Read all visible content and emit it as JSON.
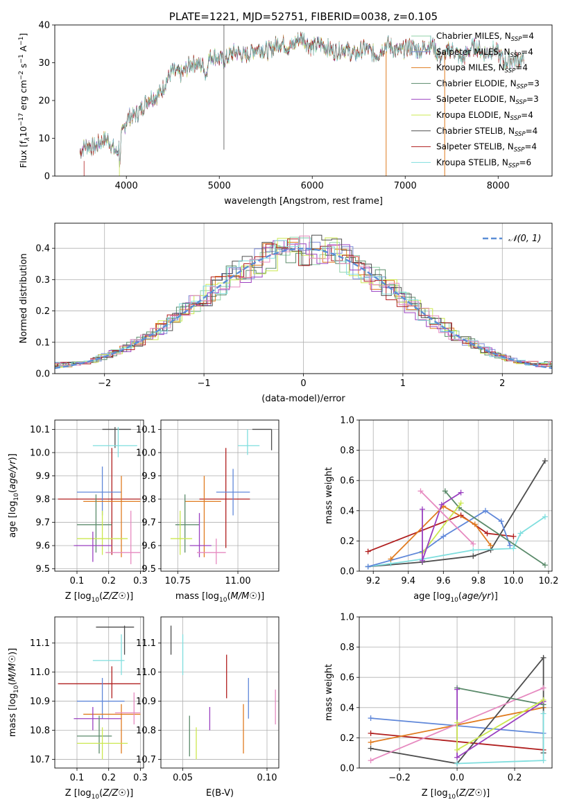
{
  "colors": {
    "chabrier_miles": "#8fd1a7",
    "salpeter_miles": "#7b8ad6",
    "kroupa_miles": "#e07b1f",
    "chabrier_elodie": "#5a8a6a",
    "salpeter_elodie": "#9a3fc0",
    "kroupa_elodie": "#cbe84f",
    "chabrier_stelib": "#4d4d4d",
    "salpeter_stelib": "#b01e1e",
    "kroupa_stelib": "#7fdede",
    "pink": "#e68ac0",
    "blue": "#5f87d9",
    "gaussian": "#5b8ed6",
    "grid": "#b0b0b0"
  },
  "chart_data": [
    {
      "id": "spectrum",
      "type": "line",
      "title": "PLATE=1221, MJD=52751, FIBERID=0038, z=0.105",
      "xlabel": "wavelength [Angstrom, rest frame]",
      "ylabel_parts": [
        "Flux [f",
        "λ",
        "10",
        "−17",
        " erg cm",
        "−2",
        " s",
        "−1",
        " A",
        "−1",
        "]"
      ],
      "xlim": [
        3230,
        8580
      ],
      "ylim": [
        0,
        40
      ],
      "xticks": [
        "4000",
        "5000",
        "6000",
        "7000",
        "8000"
      ],
      "yticks": [
        "0",
        "10",
        "20",
        "30",
        "40"
      ],
      "legend": [
        {
          "label": "Chabrier MILES, N",
          "sub": "SSP",
          "tail": "=4"
        },
        {
          "label": "Salpeter MILES, N",
          "sub": "SSP",
          "tail": "=4"
        },
        {
          "label": "Kroupa MILES, N",
          "sub": "SSP",
          "tail": "=4"
        },
        {
          "label": "Chabrier ELODIE, N",
          "sub": "SSP",
          "tail": "=3"
        },
        {
          "label": "Salpeter ELODIE, N",
          "sub": "SSP",
          "tail": "=3"
        },
        {
          "label": "Kroupa ELODIE, N",
          "sub": "SSP",
          "tail": "=4"
        },
        {
          "label": "Chabrier STELIB, N",
          "sub": "SSP",
          "tail": "=4"
        },
        {
          "label": "Salpeter STELIB, N",
          "sub": "SSP",
          "tail": "=4"
        },
        {
          "label": "Kroupa STELIB, N",
          "sub": "SSP",
          "tail": "=6"
        }
      ],
      "continuum": [
        [
          3500,
          6
        ],
        [
          3600,
          8
        ],
        [
          3700,
          9
        ],
        [
          3800,
          9
        ],
        [
          3900,
          7
        ],
        [
          4000,
          14
        ],
        [
          4100,
          17
        ],
        [
          4200,
          19
        ],
        [
          4300,
          21
        ],
        [
          4400,
          24
        ],
        [
          4500,
          27
        ],
        [
          4600,
          28
        ],
        [
          4700,
          29
        ],
        [
          4800,
          30
        ],
        [
          4900,
          31
        ],
        [
          5000,
          31
        ],
        [
          5100,
          32
        ],
        [
          5200,
          32
        ],
        [
          5300,
          33
        ],
        [
          5400,
          33
        ],
        [
          5500,
          34
        ],
        [
          5600,
          34
        ],
        [
          5700,
          35
        ],
        [
          5800,
          35
        ],
        [
          5900,
          36
        ],
        [
          6000,
          35
        ],
        [
          6100,
          34
        ],
        [
          6200,
          34
        ],
        [
          6300,
          33
        ],
        [
          6400,
          33
        ],
        [
          6500,
          33
        ],
        [
          6600,
          33
        ],
        [
          6700,
          33
        ],
        [
          6800,
          34
        ],
        [
          6900,
          34
        ],
        [
          7000,
          33
        ],
        [
          7100,
          34
        ],
        [
          7200,
          34
        ],
        [
          7300,
          34
        ],
        [
          7400,
          32
        ],
        [
          7500,
          33
        ],
        [
          7600,
          32
        ],
        [
          7700,
          33
        ],
        [
          7800,
          34
        ],
        [
          7900,
          33
        ],
        [
          8000,
          32
        ],
        [
          8100,
          31
        ],
        [
          8200,
          30
        ],
        [
          8280,
          31
        ]
      ]
    },
    {
      "id": "residuals",
      "type": "line",
      "xlabel": "(data-model)/error",
      "ylabel": "Normed distribution",
      "xlim": [
        -2.5,
        2.5
      ],
      "ylim": [
        0,
        0.48
      ],
      "xticks": [
        "−2",
        "−1",
        "0",
        "1",
        "2"
      ],
      "yticks": [
        "0.0",
        "0.1",
        "0.2",
        "0.3",
        "0.4"
      ],
      "legend": "𝒩(0, 1)"
    },
    {
      "id": "age_vs_z",
      "type": "scatter",
      "xlabel": "Z [log10(Z/Z☉)]",
      "ylabel": "age  [log10(age/yr)]",
      "xlim": [
        0.03,
        0.31
      ],
      "ylim": [
        9.49,
        10.14
      ],
      "xticks": [
        "0.1",
        "0.2",
        "0.3"
      ],
      "yticks": [
        "9.5",
        "9.6",
        "9.7",
        "9.8",
        "9.9",
        "10.0",
        "10.1"
      ],
      "points": [
        {
          "series": "chabrier_stelib",
          "x": 0.22,
          "y": 10.1,
          "xerr": [
            0.18,
            0.27
          ],
          "yerr": [
            10.02,
            10.11
          ]
        },
        {
          "series": "kroupa_stelib",
          "x": 0.23,
          "y": 10.03,
          "xerr": [
            0.15,
            0.29
          ],
          "yerr": [
            9.98,
            10.11
          ]
        },
        {
          "series": "salpeter_stelib",
          "x": 0.21,
          "y": 9.8,
          "xerr": [
            0.04,
            0.3
          ],
          "yerr": [
            9.56,
            10.02
          ]
        },
        {
          "series": "blue",
          "x": 0.18,
          "y": 9.83,
          "xerr": [
            0.1,
            0.24
          ],
          "yerr": [
            9.73,
            9.94
          ]
        },
        {
          "series": "kroupa_miles",
          "x": 0.24,
          "y": 9.79,
          "xerr": [
            0.12,
            0.3
          ],
          "yerr": [
            9.55,
            9.9
          ]
        },
        {
          "series": "chabrier_elodie",
          "x": 0.16,
          "y": 9.69,
          "xerr": [
            0.1,
            0.21
          ],
          "yerr": [
            9.57,
            9.82
          ]
        },
        {
          "series": "kroupa_elodie",
          "x": 0.18,
          "y": 9.63,
          "xerr": [
            0.1,
            0.26
          ],
          "yerr": [
            9.56,
            9.75
          ]
        },
        {
          "series": "salpeter_elodie",
          "x": 0.15,
          "y": 9.6,
          "xerr": [
            0.09,
            0.21
          ],
          "yerr": [
            9.53,
            9.66
          ]
        },
        {
          "series": "pink",
          "x": 0.27,
          "y": 9.57,
          "xerr": [
            0.19,
            0.3
          ],
          "yerr": [
            9.52,
            9.75
          ]
        }
      ]
    },
    {
      "id": "age_vs_mass",
      "type": "scatter",
      "xlabel": "mass [log10(M/M☉)]",
      "xlim": [
        10.68,
        11.17
      ],
      "ylim": [
        9.49,
        10.14
      ],
      "xticks": [
        "10.75",
        "11.00"
      ],
      "yticks": [
        "9.5",
        "9.6",
        "9.7",
        "9.8",
        "9.9",
        "10.0",
        "10.1"
      ],
      "points": [
        {
          "series": "chabrier_stelib",
          "x": 11.14,
          "y": 10.1,
          "xerr": [
            11.06,
            11.14
          ],
          "yerr": [
            10.01,
            10.1
          ]
        },
        {
          "series": "kroupa_stelib",
          "x": 11.04,
          "y": 10.03,
          "xerr": [
            11.0,
            11.09
          ],
          "yerr": [
            9.99,
            10.1
          ]
        },
        {
          "series": "salpeter_stelib",
          "x": 10.95,
          "y": 9.8,
          "xerr": [
            10.84,
            11.05
          ],
          "yerr": [
            9.59,
            10.02
          ]
        },
        {
          "series": "blue",
          "x": 10.98,
          "y": 9.83,
          "xerr": [
            10.91,
            11.05
          ],
          "yerr": [
            9.73,
            9.93
          ]
        },
        {
          "series": "kroupa_miles",
          "x": 10.86,
          "y": 9.79,
          "xerr": [
            10.78,
            10.93
          ],
          "yerr": [
            9.55,
            9.9
          ]
        },
        {
          "series": "chabrier_elodie",
          "x": 10.78,
          "y": 9.69,
          "xerr": [
            10.74,
            10.84
          ],
          "yerr": [
            9.57,
            9.82
          ]
        },
        {
          "series": "kroupa_elodie",
          "x": 10.76,
          "y": 9.63,
          "xerr": [
            10.72,
            10.81
          ],
          "yerr": [
            9.56,
            9.75
          ]
        },
        {
          "series": "salpeter_elodie",
          "x": 10.84,
          "y": 9.6,
          "xerr": [
            10.8,
            10.89
          ],
          "yerr": [
            9.55,
            9.74
          ]
        },
        {
          "series": "pink",
          "x": 10.91,
          "y": 9.57,
          "xerr": [
            10.83,
            10.95
          ],
          "yerr": [
            9.52,
            9.63
          ]
        }
      ]
    },
    {
      "id": "mw_vs_age",
      "type": "line",
      "ylabel": "mass weight",
      "xlabel": "age  [log10(age/yr)]",
      "xlim": [
        9.12,
        10.22
      ],
      "ylim": [
        0,
        1.0
      ],
      "xticks": [
        "9.2",
        "9.4",
        "9.6",
        "9.8",
        "10.0",
        "10.2"
      ],
      "yticks": [
        "0.0",
        "0.2",
        "0.4",
        "0.6",
        "0.8",
        "1.0"
      ],
      "series": [
        {
          "name": "chabrier_stelib",
          "x": [
            9.17,
            9.48,
            9.77,
            9.87,
            10.18
          ],
          "y": [
            0.03,
            0.06,
            0.1,
            0.14,
            0.73
          ]
        },
        {
          "name": "kroupa_stelib",
          "x": 9.17,
          "xs": [
            9.17,
            9.3,
            9.48,
            9.77,
            10.0,
            10.04,
            10.18
          ],
          "y": [
            0.03,
            0.05,
            0.08,
            0.14,
            0.15,
            0.25,
            0.36
          ]
        },
        {
          "name": "salpeter_stelib",
          "x": [
            9.17,
            9.7,
            9.85,
            10.0
          ],
          "y": [
            0.13,
            0.37,
            0.25,
            0.23
          ]
        },
        {
          "name": "blue",
          "x": [
            9.17,
            9.48,
            9.6,
            9.84,
            9.93,
            9.98
          ],
          "y": [
            0.03,
            0.13,
            0.23,
            0.4,
            0.33,
            0.17
          ]
        },
        {
          "name": "kroupa_miles",
          "x": [
            9.3,
            9.6,
            9.78,
            9.87
          ],
          "y": [
            0.08,
            0.43,
            0.31,
            0.17
          ]
        },
        {
          "name": "chabrier_elodie",
          "x": [
            9.61,
            9.69,
            10.18
          ],
          "y": [
            0.53,
            0.42,
            0.04
          ]
        },
        {
          "name": "kroupa_elodie",
          "x": [
            9.48,
            9.7
          ],
          "y": [
            0.12,
            0.45
          ]
        },
        {
          "name": "salpeter_elodie",
          "x": [
            9.48,
            9.48,
            9.59,
            9.7
          ],
          "y": [
            0.41,
            0.07,
            0.44,
            0.52
          ]
        },
        {
          "name": "pink",
          "x": [
            9.47,
            9.77
          ],
          "y": [
            0.53,
            0.18
          ]
        }
      ]
    },
    {
      "id": "mass_vs_z",
      "type": "scatter",
      "xlabel": "Z [log10(Z/Z☉)]",
      "ylabel": "mass [log10(M/M☉)]",
      "xlim": [
        0.03,
        0.31
      ],
      "ylim": [
        10.67,
        11.19
      ],
      "xticks": [
        "0.1",
        "0.2",
        "0.3"
      ],
      "yticks": [
        "10.7",
        "10.8",
        "10.9",
        "11.0",
        "11.1"
      ],
      "points": [
        {
          "series": "chabrier_stelib",
          "x": 0.25,
          "y": 11.155,
          "xerr": [
            0.16,
            0.28
          ],
          "yerr": [
            11.06,
            11.16
          ]
        },
        {
          "series": "kroupa_stelib",
          "x": 0.24,
          "y": 11.04,
          "xerr": [
            0.15,
            0.25
          ],
          "yerr": [
            10.99,
            11.13
          ]
        },
        {
          "series": "salpeter_stelib",
          "x": 0.21,
          "y": 10.96,
          "xerr": [
            0.04,
            0.3
          ],
          "yerr": [
            10.91,
            11.02
          ]
        },
        {
          "series": "blue",
          "x": 0.18,
          "y": 10.9,
          "xerr": [
            0.1,
            0.25
          ],
          "yerr": [
            10.84,
            10.98
          ]
        },
        {
          "series": "kroupa_miles",
          "x": 0.24,
          "y": 10.855,
          "xerr": [
            0.12,
            0.3
          ],
          "yerr": [
            10.72,
            10.89
          ]
        },
        {
          "series": "salpeter_elodie",
          "x": 0.15,
          "y": 10.84,
          "xerr": [
            0.09,
            0.24
          ],
          "yerr": [
            10.8,
            10.88
          ]
        },
        {
          "series": "pink",
          "x": 0.28,
          "y": 10.86,
          "xerr": [
            0.22,
            0.3
          ],
          "yerr": [
            10.82,
            10.93
          ]
        },
        {
          "series": "chabrier_elodie",
          "x": 0.17,
          "y": 10.78,
          "xerr": [
            0.1,
            0.21
          ],
          "yerr": [
            10.72,
            10.85
          ]
        },
        {
          "series": "kroupa_elodie",
          "x": 0.18,
          "y": 10.755,
          "xerr": [
            0.1,
            0.26
          ],
          "yerr": [
            10.7,
            10.81
          ]
        }
      ]
    },
    {
      "id": "mass_vs_ebv",
      "type": "scatter",
      "xlabel": "E(B-V)",
      "xlim": [
        0.037,
        0.107
      ],
      "ylim": [
        10.67,
        11.19
      ],
      "xticks": [
        "0.05",
        "0.10"
      ],
      "yticks": [
        "10.7",
        "10.8",
        "10.9",
        "11.0",
        "11.1"
      ],
      "points": [
        {
          "series": "chabrier_stelib",
          "x": 0.043,
          "y": 11.11,
          "yerr": [
            11.06,
            11.16
          ]
        },
        {
          "series": "kroupa_stelib",
          "x": 0.05,
          "y": 11.04,
          "yerr": [
            10.99,
            11.13
          ]
        },
        {
          "series": "chabrier_elodie",
          "x": 0.054,
          "y": 10.78,
          "yerr": [
            10.71,
            10.85
          ]
        },
        {
          "series": "kroupa_elodie",
          "x": 0.058,
          "y": 10.755,
          "yerr": [
            10.7,
            10.81
          ]
        },
        {
          "series": "salpeter_elodie",
          "x": 0.066,
          "y": 10.84,
          "yerr": [
            10.8,
            10.88
          ]
        },
        {
          "series": "salpeter_stelib",
          "x": 0.076,
          "y": 10.99,
          "yerr": [
            10.91,
            11.06
          ]
        },
        {
          "series": "kroupa_miles",
          "x": 0.086,
          "y": 10.8,
          "yerr": [
            10.72,
            10.89
          ]
        },
        {
          "series": "blue",
          "x": 0.089,
          "y": 10.91,
          "yerr": [
            10.84,
            10.98
          ]
        },
        {
          "series": "pink",
          "x": 0.105,
          "y": 10.88,
          "yerr": [
            10.82,
            10.94
          ]
        }
      ]
    },
    {
      "id": "mw_vs_z",
      "type": "line",
      "ylabel": "mass weight",
      "xlabel": "Z [log10(Z/Z☉)]",
      "xlim": [
        -0.34,
        0.33
      ],
      "ylim": [
        0,
        1.0
      ],
      "xticks": [
        "−0.2",
        "0.0",
        "0.2"
      ],
      "yticks": [
        "0.0",
        "0.2",
        "0.4",
        "0.6",
        "0.8",
        "1.0"
      ],
      "series": [
        {
          "name": "blue",
          "x": [
            -0.3,
            0.3
          ],
          "y": [
            0.33,
            0.23
          ]
        },
        {
          "name": "salpeter_stelib",
          "x": [
            -0.3,
            0.3
          ],
          "y": [
            0.23,
            0.12
          ]
        },
        {
          "name": "kroupa_miles",
          "x": [
            -0.3,
            0.3
          ],
          "y": [
            0.17,
            0.4
          ]
        },
        {
          "name": "chabrier_stelib",
          "x": [
            -0.3,
            0.0,
            0.3,
            0.3
          ],
          "y": [
            0.13,
            0.03,
            0.73,
            0.1
          ]
        },
        {
          "name": "pink",
          "x": [
            -0.3,
            0.3
          ],
          "y": [
            0.05,
            0.53
          ]
        },
        {
          "name": "chabrier_elodie",
          "x": [
            0.0,
            0.3
          ],
          "y": [
            0.53,
            0.42
          ]
        },
        {
          "name": "salpeter_elodie",
          "x": [
            0.0,
            0.0,
            0.3
          ],
          "y": [
            0.52,
            0.07,
            0.44
          ]
        },
        {
          "name": "kroupa_elodie",
          "x": [
            0.0,
            0.0,
            0.3
          ],
          "y": [
            0.3,
            0.12,
            0.45
          ]
        },
        {
          "name": "kroupa_stelib",
          "x": [
            0.0,
            0.3,
            0.3
          ],
          "y": [
            0.03,
            0.05,
            0.36
          ]
        }
      ]
    }
  ]
}
